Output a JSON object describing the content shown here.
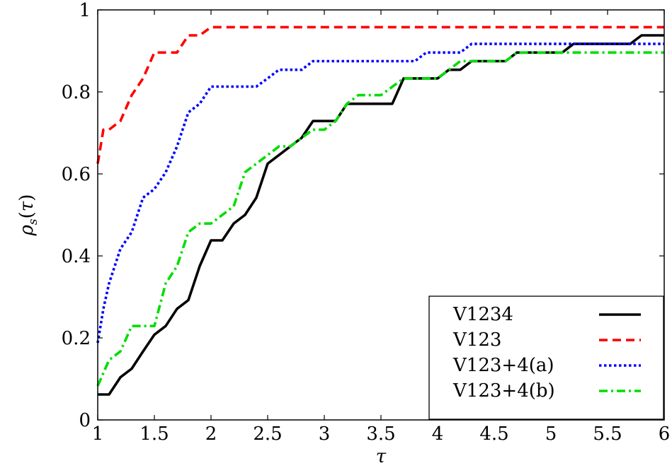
{
  "chart_data": {
    "type": "line",
    "title": "",
    "xlabel": "τ",
    "ylabel": "ρs(τ)",
    "xlim": [
      1,
      6
    ],
    "ylim": [
      0,
      1
    ],
    "x_ticks": [
      "1",
      "1.5",
      "2",
      "2.5",
      "3",
      "3.5",
      "4",
      "4.5",
      "5",
      "5.5",
      "6"
    ],
    "y_ticks": [
      "0",
      "0.2",
      "0.4",
      "0.6",
      "0.8",
      "1"
    ],
    "grid": false,
    "legend_position": "bottom-right",
    "series": [
      {
        "name": "V1234",
        "color": "#000000",
        "style": "solid",
        "points": [
          [
            1,
            0.062
          ],
          [
            1.1,
            0.062
          ],
          [
            1.2,
            0.104
          ],
          [
            1.3,
            0.125
          ],
          [
            1.4,
            0.167
          ],
          [
            1.5,
            0.208
          ],
          [
            1.6,
            0.229
          ],
          [
            1.7,
            0.271
          ],
          [
            1.8,
            0.292
          ],
          [
            1.9,
            0.375
          ],
          [
            2.0,
            0.438
          ],
          [
            2.1,
            0.438
          ],
          [
            2.2,
            0.479
          ],
          [
            2.3,
            0.5
          ],
          [
            2.4,
            0.542
          ],
          [
            2.5,
            0.625
          ],
          [
            2.6,
            0.646
          ],
          [
            2.7,
            0.667
          ],
          [
            2.8,
            0.688
          ],
          [
            2.9,
            0.729
          ],
          [
            3.1,
            0.729
          ],
          [
            3.2,
            0.771
          ],
          [
            3.6,
            0.771
          ],
          [
            3.7,
            0.833
          ],
          [
            4.0,
            0.833
          ],
          [
            4.1,
            0.854
          ],
          [
            4.2,
            0.854
          ],
          [
            4.3,
            0.875
          ],
          [
            4.6,
            0.875
          ],
          [
            4.7,
            0.896
          ],
          [
            5.1,
            0.896
          ],
          [
            5.2,
            0.917
          ],
          [
            5.7,
            0.917
          ],
          [
            5.8,
            0.938
          ],
          [
            6.0,
            0.938
          ]
        ]
      },
      {
        "name": "V123",
        "color": "#ff0000",
        "style": "dashed",
        "points": [
          [
            1,
            0.625
          ],
          [
            1.05,
            0.708
          ],
          [
            1.1,
            0.708
          ],
          [
            1.2,
            0.729
          ],
          [
            1.3,
            0.792
          ],
          [
            1.4,
            0.833
          ],
          [
            1.5,
            0.896
          ],
          [
            1.6,
            0.896
          ],
          [
            1.7,
            0.896
          ],
          [
            1.8,
            0.938
          ],
          [
            1.9,
            0.938
          ],
          [
            2.0,
            0.958
          ],
          [
            6.0,
            0.958
          ]
        ]
      },
      {
        "name": "V123+4(a)",
        "color": "#0000ff",
        "style": "dotted",
        "points": [
          [
            1,
            0.188
          ],
          [
            1.05,
            0.271
          ],
          [
            1.1,
            0.333
          ],
          [
            1.2,
            0.417
          ],
          [
            1.3,
            0.458
          ],
          [
            1.4,
            0.542
          ],
          [
            1.5,
            0.563
          ],
          [
            1.6,
            0.604
          ],
          [
            1.7,
            0.667
          ],
          [
            1.8,
            0.75
          ],
          [
            1.9,
            0.771
          ],
          [
            2.0,
            0.813
          ],
          [
            2.4,
            0.813
          ],
          [
            2.5,
            0.833
          ],
          [
            2.6,
            0.854
          ],
          [
            2.7,
            0.854
          ],
          [
            2.8,
            0.854
          ],
          [
            2.9,
            0.875
          ],
          [
            3.8,
            0.875
          ],
          [
            3.9,
            0.896
          ],
          [
            4.2,
            0.896
          ],
          [
            4.3,
            0.917
          ],
          [
            6.0,
            0.917
          ]
        ]
      },
      {
        "name": "V123+4(b)",
        "color": "#00dd00",
        "style": "dashdot",
        "points": [
          [
            1,
            0.083
          ],
          [
            1.1,
            0.146
          ],
          [
            1.2,
            0.167
          ],
          [
            1.3,
            0.229
          ],
          [
            1.4,
            0.229
          ],
          [
            1.5,
            0.229
          ],
          [
            1.6,
            0.333
          ],
          [
            1.7,
            0.375
          ],
          [
            1.8,
            0.458
          ],
          [
            1.9,
            0.479
          ],
          [
            2.0,
            0.479
          ],
          [
            2.1,
            0.5
          ],
          [
            2.2,
            0.521
          ],
          [
            2.3,
            0.604
          ],
          [
            2.4,
            0.625
          ],
          [
            2.5,
            0.646
          ],
          [
            2.6,
            0.667
          ],
          [
            2.7,
            0.667
          ],
          [
            2.8,
            0.688
          ],
          [
            2.9,
            0.708
          ],
          [
            3.0,
            0.708
          ],
          [
            3.1,
            0.729
          ],
          [
            3.2,
            0.771
          ],
          [
            3.3,
            0.792
          ],
          [
            3.5,
            0.792
          ],
          [
            3.7,
            0.833
          ],
          [
            4.0,
            0.833
          ],
          [
            4.1,
            0.854
          ],
          [
            4.2,
            0.875
          ],
          [
            4.6,
            0.875
          ],
          [
            4.7,
            0.896
          ],
          [
            6.0,
            0.896
          ]
        ]
      }
    ]
  }
}
